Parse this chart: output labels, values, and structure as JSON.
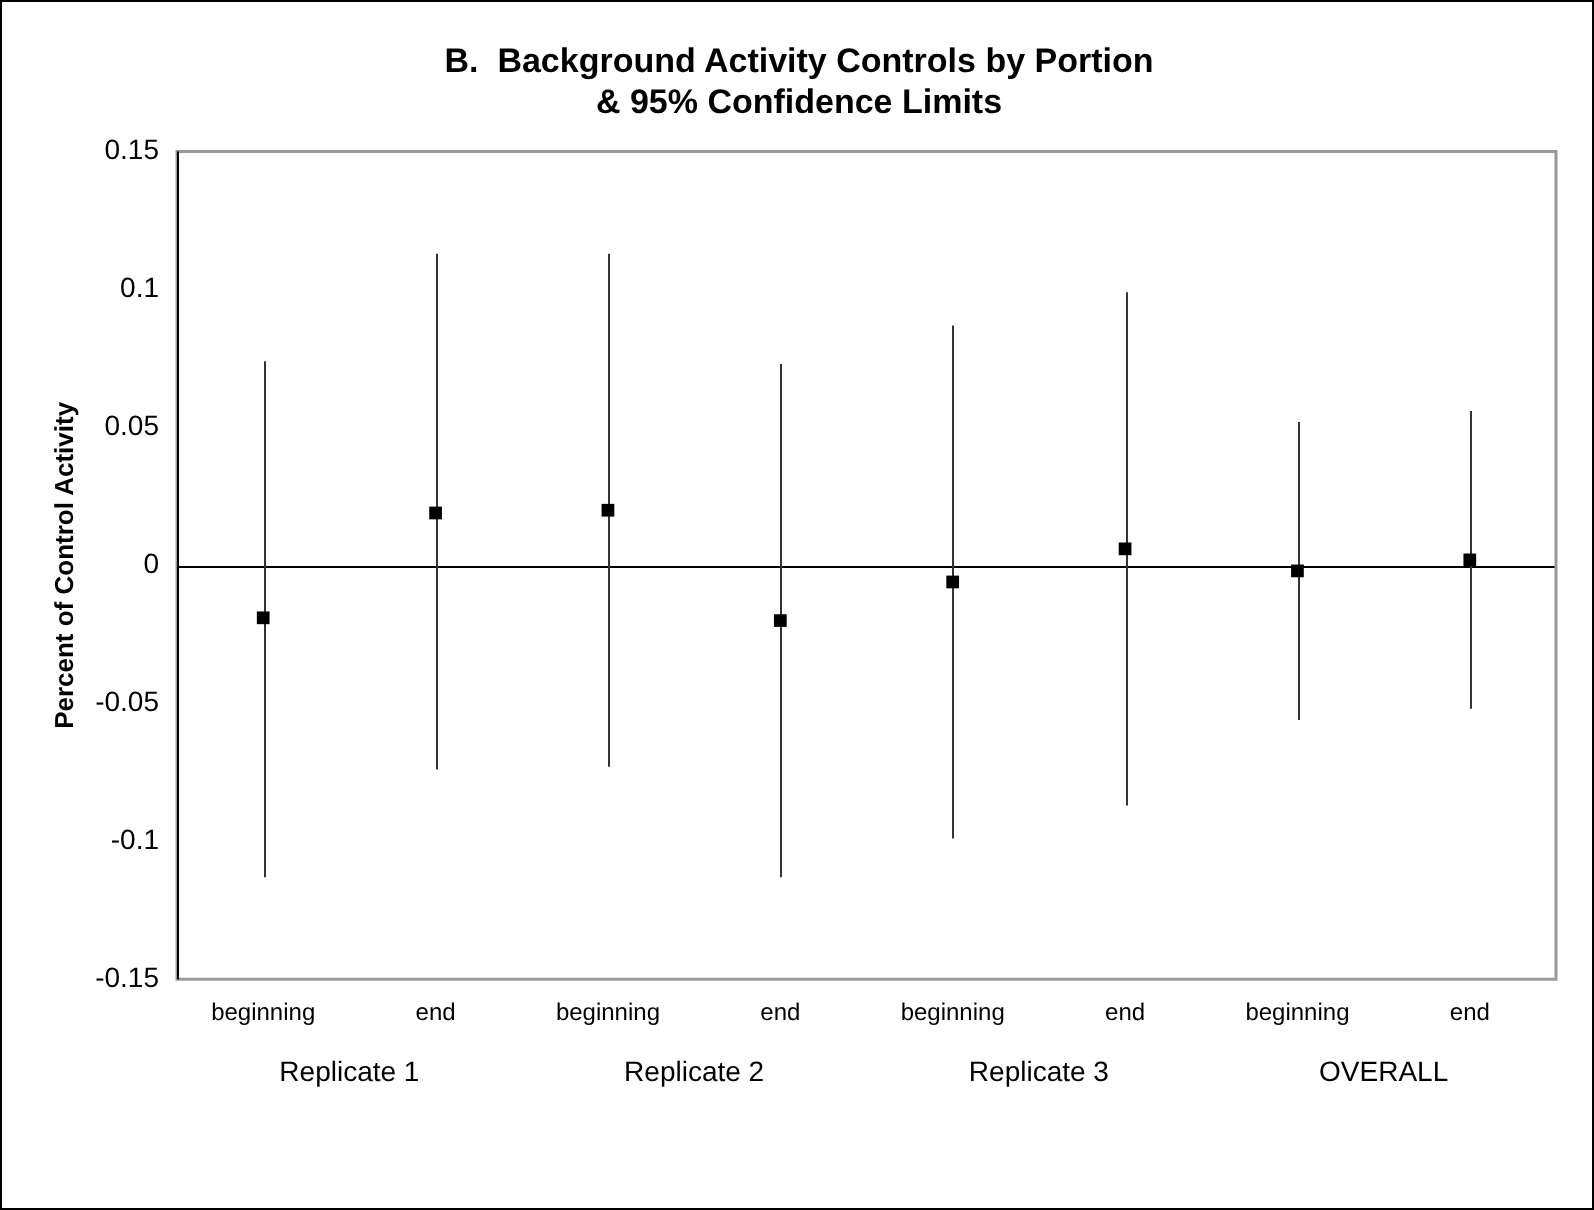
{
  "chart_data": {
    "type": "scatter",
    "title": "B.  Background Activity Controls by Portion\n& 95% Confidence Limits",
    "ylabel": "Percent of Control Activity",
    "categories": [
      "beginning",
      "end",
      "beginning",
      "end",
      "beginning",
      "end",
      "beginning",
      "end"
    ],
    "series": [
      {
        "color": "#000000",
        "values": [
          -0.019,
          0.019,
          0.02,
          -0.02,
          -0.006,
          0.006,
          -0.002,
          0.002
        ],
        "errors": [
          [
            -0.113,
            0.074
          ],
          [
            -0.074,
            0.113
          ],
          [
            -0.073,
            0.113
          ],
          [
            -0.113,
            0.073
          ],
          [
            -0.099,
            0.087
          ],
          [
            -0.087,
            0.099
          ],
          [
            -0.056,
            0.052
          ],
          [
            -0.052,
            0.056
          ]
        ]
      }
    ],
    "annotations": [
      "Replicate 1",
      "Replicate 2",
      "Replicate 3",
      "OVERALL"
    ],
    "ylim": [
      -0.15,
      0.15
    ],
    "yticks": [
      -0.15,
      -0.1,
      -0.05,
      0,
      0.05,
      0.1,
      0.15
    ],
    "ref_lines": [
      {
        "axis": "y",
        "value": 0,
        "color": "#000000"
      }
    ],
    "marker": "square",
    "grid": false,
    "legend": false
  }
}
